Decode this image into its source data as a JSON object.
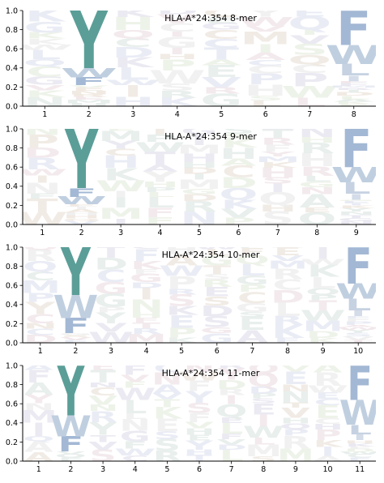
{
  "chart_data": [
    {
      "type": "sequence-logo",
      "title": "HLA-A*24:354 8-mer",
      "ylim": [
        0,
        1.0
      ],
      "yticks": [
        "0.0",
        "0.2",
        "0.4",
        "0.6",
        "0.8",
        "1.0"
      ],
      "positions": [
        "1",
        "2",
        "3",
        "4",
        "5",
        "6",
        "7",
        "8"
      ],
      "anchors": [
        {
          "position": "2",
          "letters": [
            {
              "aa": "Y",
              "freq": 0.6
            },
            {
              "aa": "F",
              "freq": 0.08
            },
            {
              "aa": "W",
              "freq": 0.1
            }
          ]
        },
        {
          "position": "8",
          "letters": [
            {
              "aa": "F",
              "freq": 0.36
            },
            {
              "aa": "W",
              "freq": 0.2
            },
            {
              "aa": "L",
              "freq": 0.12
            },
            {
              "aa": "I",
              "freq": 0.06
            }
          ]
        }
      ]
    },
    {
      "type": "sequence-logo",
      "title": "HLA-A*24:354 9-mer",
      "ylim": [
        0,
        1.0
      ],
      "yticks": [
        "0.0",
        "0.2",
        "0.4",
        "0.6",
        "0.8",
        "1.0"
      ],
      "positions": [
        "1",
        "2",
        "3",
        "4",
        "5",
        "6",
        "7",
        "8",
        "9"
      ],
      "anchors": [
        {
          "position": "2",
          "letters": [
            {
              "aa": "Y",
              "freq": 0.62
            },
            {
              "aa": "F",
              "freq": 0.09
            },
            {
              "aa": "W",
              "freq": 0.08
            }
          ]
        },
        {
          "position": "9",
          "letters": [
            {
              "aa": "F",
              "freq": 0.4
            },
            {
              "aa": "W",
              "freq": 0.16
            },
            {
              "aa": "L",
              "freq": 0.12
            },
            {
              "aa": "I",
              "freq": 0.06
            }
          ]
        }
      ]
    },
    {
      "type": "sequence-logo",
      "title": "HLA-A*24:354 10-mer",
      "ylim": [
        0,
        1.0
      ],
      "yticks": [
        "0.0",
        "0.2",
        "0.4",
        "0.6",
        "0.8",
        "1.0"
      ],
      "positions": [
        "1",
        "2",
        "3",
        "4",
        "5",
        "6",
        "7",
        "8",
        "9",
        "10"
      ],
      "anchors": [
        {
          "position": "2",
          "letters": [
            {
              "aa": "Y",
              "freq": 0.5
            },
            {
              "aa": "W",
              "freq": 0.24
            },
            {
              "aa": "F",
              "freq": 0.16
            }
          ]
        },
        {
          "position": "10",
          "letters": [
            {
              "aa": "F",
              "freq": 0.38
            },
            {
              "aa": "W",
              "freq": 0.16
            },
            {
              "aa": "L",
              "freq": 0.12
            },
            {
              "aa": "I",
              "freq": 0.06
            }
          ]
        }
      ]
    },
    {
      "type": "sequence-logo",
      "title": "HLA-A*24:354 11-mer",
      "ylim": [
        0,
        1.0
      ],
      "yticks": [
        "0.0",
        "0.2",
        "0.4",
        "0.6",
        "0.8",
        "1.0"
      ],
      "positions": [
        "1",
        "2",
        "3",
        "4",
        "5",
        "6",
        "7",
        "8",
        "9",
        "10",
        "11"
      ],
      "anchors": [
        {
          "position": "2",
          "letters": [
            {
              "aa": "Y",
              "freq": 0.52
            },
            {
              "aa": "W",
              "freq": 0.22
            },
            {
              "aa": "F",
              "freq": 0.16
            }
          ]
        },
        {
          "position": "11",
          "letters": [
            {
              "aa": "F",
              "freq": 0.36
            },
            {
              "aa": "W",
              "freq": 0.26
            },
            {
              "aa": "L",
              "freq": 0.1
            },
            {
              "aa": "I",
              "freq": 0.06
            }
          ]
        }
      ]
    }
  ],
  "colors": {
    "Y": "#5b9e98",
    "F": "#a3b8d4",
    "W": "#c0cfe0",
    "L": "#c6d2e2",
    "I": "#d3dce8",
    "background_letters": [
      "#e4ece9",
      "#e6e9f3",
      "#efe8e0",
      "#ebf1e6",
      "#f1e6ea",
      "#e8e6f0",
      "#eeeeee"
    ]
  }
}
